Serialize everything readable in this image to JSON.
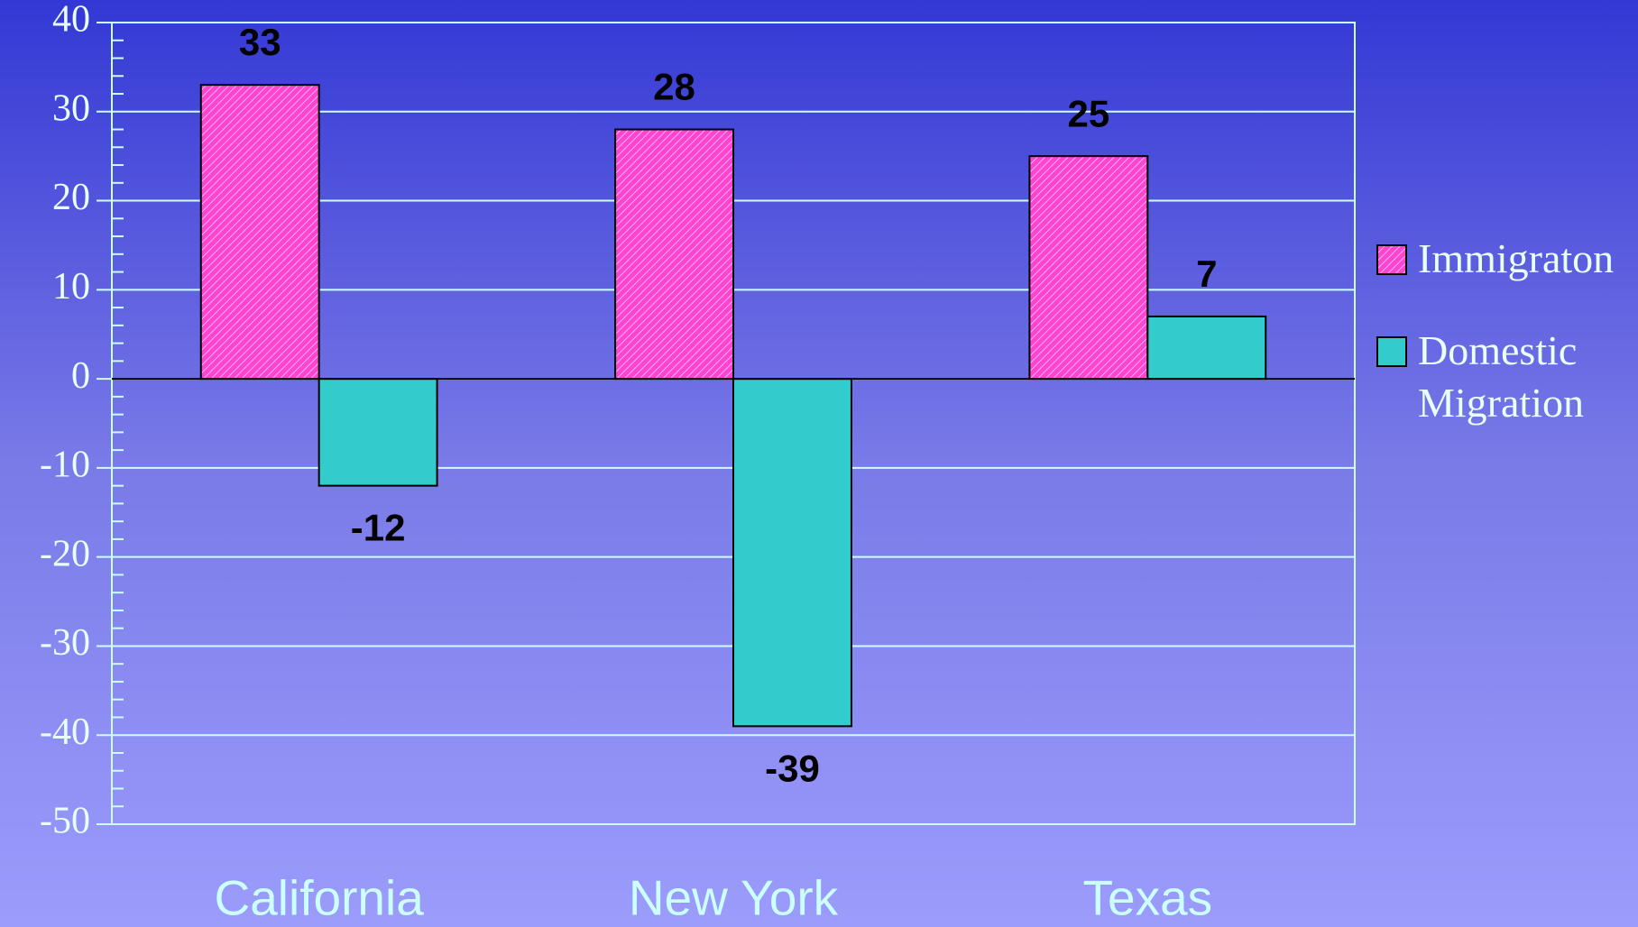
{
  "chart_data": {
    "type": "bar",
    "categories": [
      "California",
      "New York",
      "Texas"
    ],
    "series": [
      {
        "name": "Immigraton",
        "color": "#ff33cc",
        "values": [
          33,
          28,
          25
        ]
      },
      {
        "name": "Domestic Migration",
        "color": "#33cccc",
        "values": [
          -12,
          -39,
          7
        ]
      }
    ],
    "ylim": [
      -50,
      40
    ],
    "yticks": [
      -50,
      -40,
      -30,
      -20,
      -10,
      0,
      10,
      20,
      30,
      40
    ],
    "grid": true,
    "legend": "right"
  }
}
